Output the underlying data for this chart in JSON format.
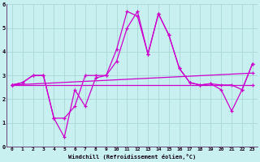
{
  "title": "",
  "xlabel": "Windchill (Refroidissement éolien,°C)",
  "ylabel": "",
  "background_color": "#c8f0f0",
  "grid_color": "#a8d8d8",
  "line_color": "#cc00cc",
  "xlim": [
    -0.5,
    23.5
  ],
  "ylim": [
    0,
    6
  ],
  "xticks": [
    0,
    1,
    2,
    3,
    4,
    5,
    6,
    7,
    8,
    9,
    10,
    11,
    12,
    13,
    14,
    15,
    16,
    17,
    18,
    19,
    20,
    21,
    22,
    23
  ],
  "yticks": [
    0,
    1,
    2,
    3,
    4,
    5,
    6
  ],
  "line1_x": [
    0,
    1,
    2,
    3,
    4,
    5,
    6,
    7,
    8,
    9,
    10,
    11,
    12,
    13,
    14,
    15,
    16,
    17,
    18,
    19,
    20,
    21,
    22,
    23
  ],
  "line1_y": [
    2.6,
    2.7,
    3.0,
    3.0,
    1.2,
    1.2,
    1.7,
    3.0,
    3.0,
    3.0,
    4.1,
    5.7,
    5.5,
    3.9,
    5.6,
    4.7,
    3.3,
    2.7,
    2.6,
    2.65,
    2.4,
    1.5,
    2.4,
    3.5
  ],
  "line2_x": [
    0,
    1,
    2,
    3,
    4,
    5,
    6,
    7,
    8,
    9,
    10,
    11,
    12,
    13,
    14,
    15,
    16,
    17,
    18,
    19,
    20,
    21,
    22,
    23
  ],
  "line2_y": [
    2.6,
    2.7,
    3.0,
    3.0,
    1.2,
    0.4,
    2.4,
    1.7,
    2.9,
    3.0,
    3.6,
    5.0,
    5.7,
    3.9,
    5.6,
    4.7,
    3.3,
    2.7,
    2.6,
    2.65,
    2.6,
    2.6,
    2.4,
    3.5
  ],
  "line3_x": [
    0,
    23
  ],
  "line3_y": [
    2.6,
    3.1
  ],
  "line4_x": [
    0,
    23
  ],
  "line4_y": [
    2.6,
    2.6
  ]
}
